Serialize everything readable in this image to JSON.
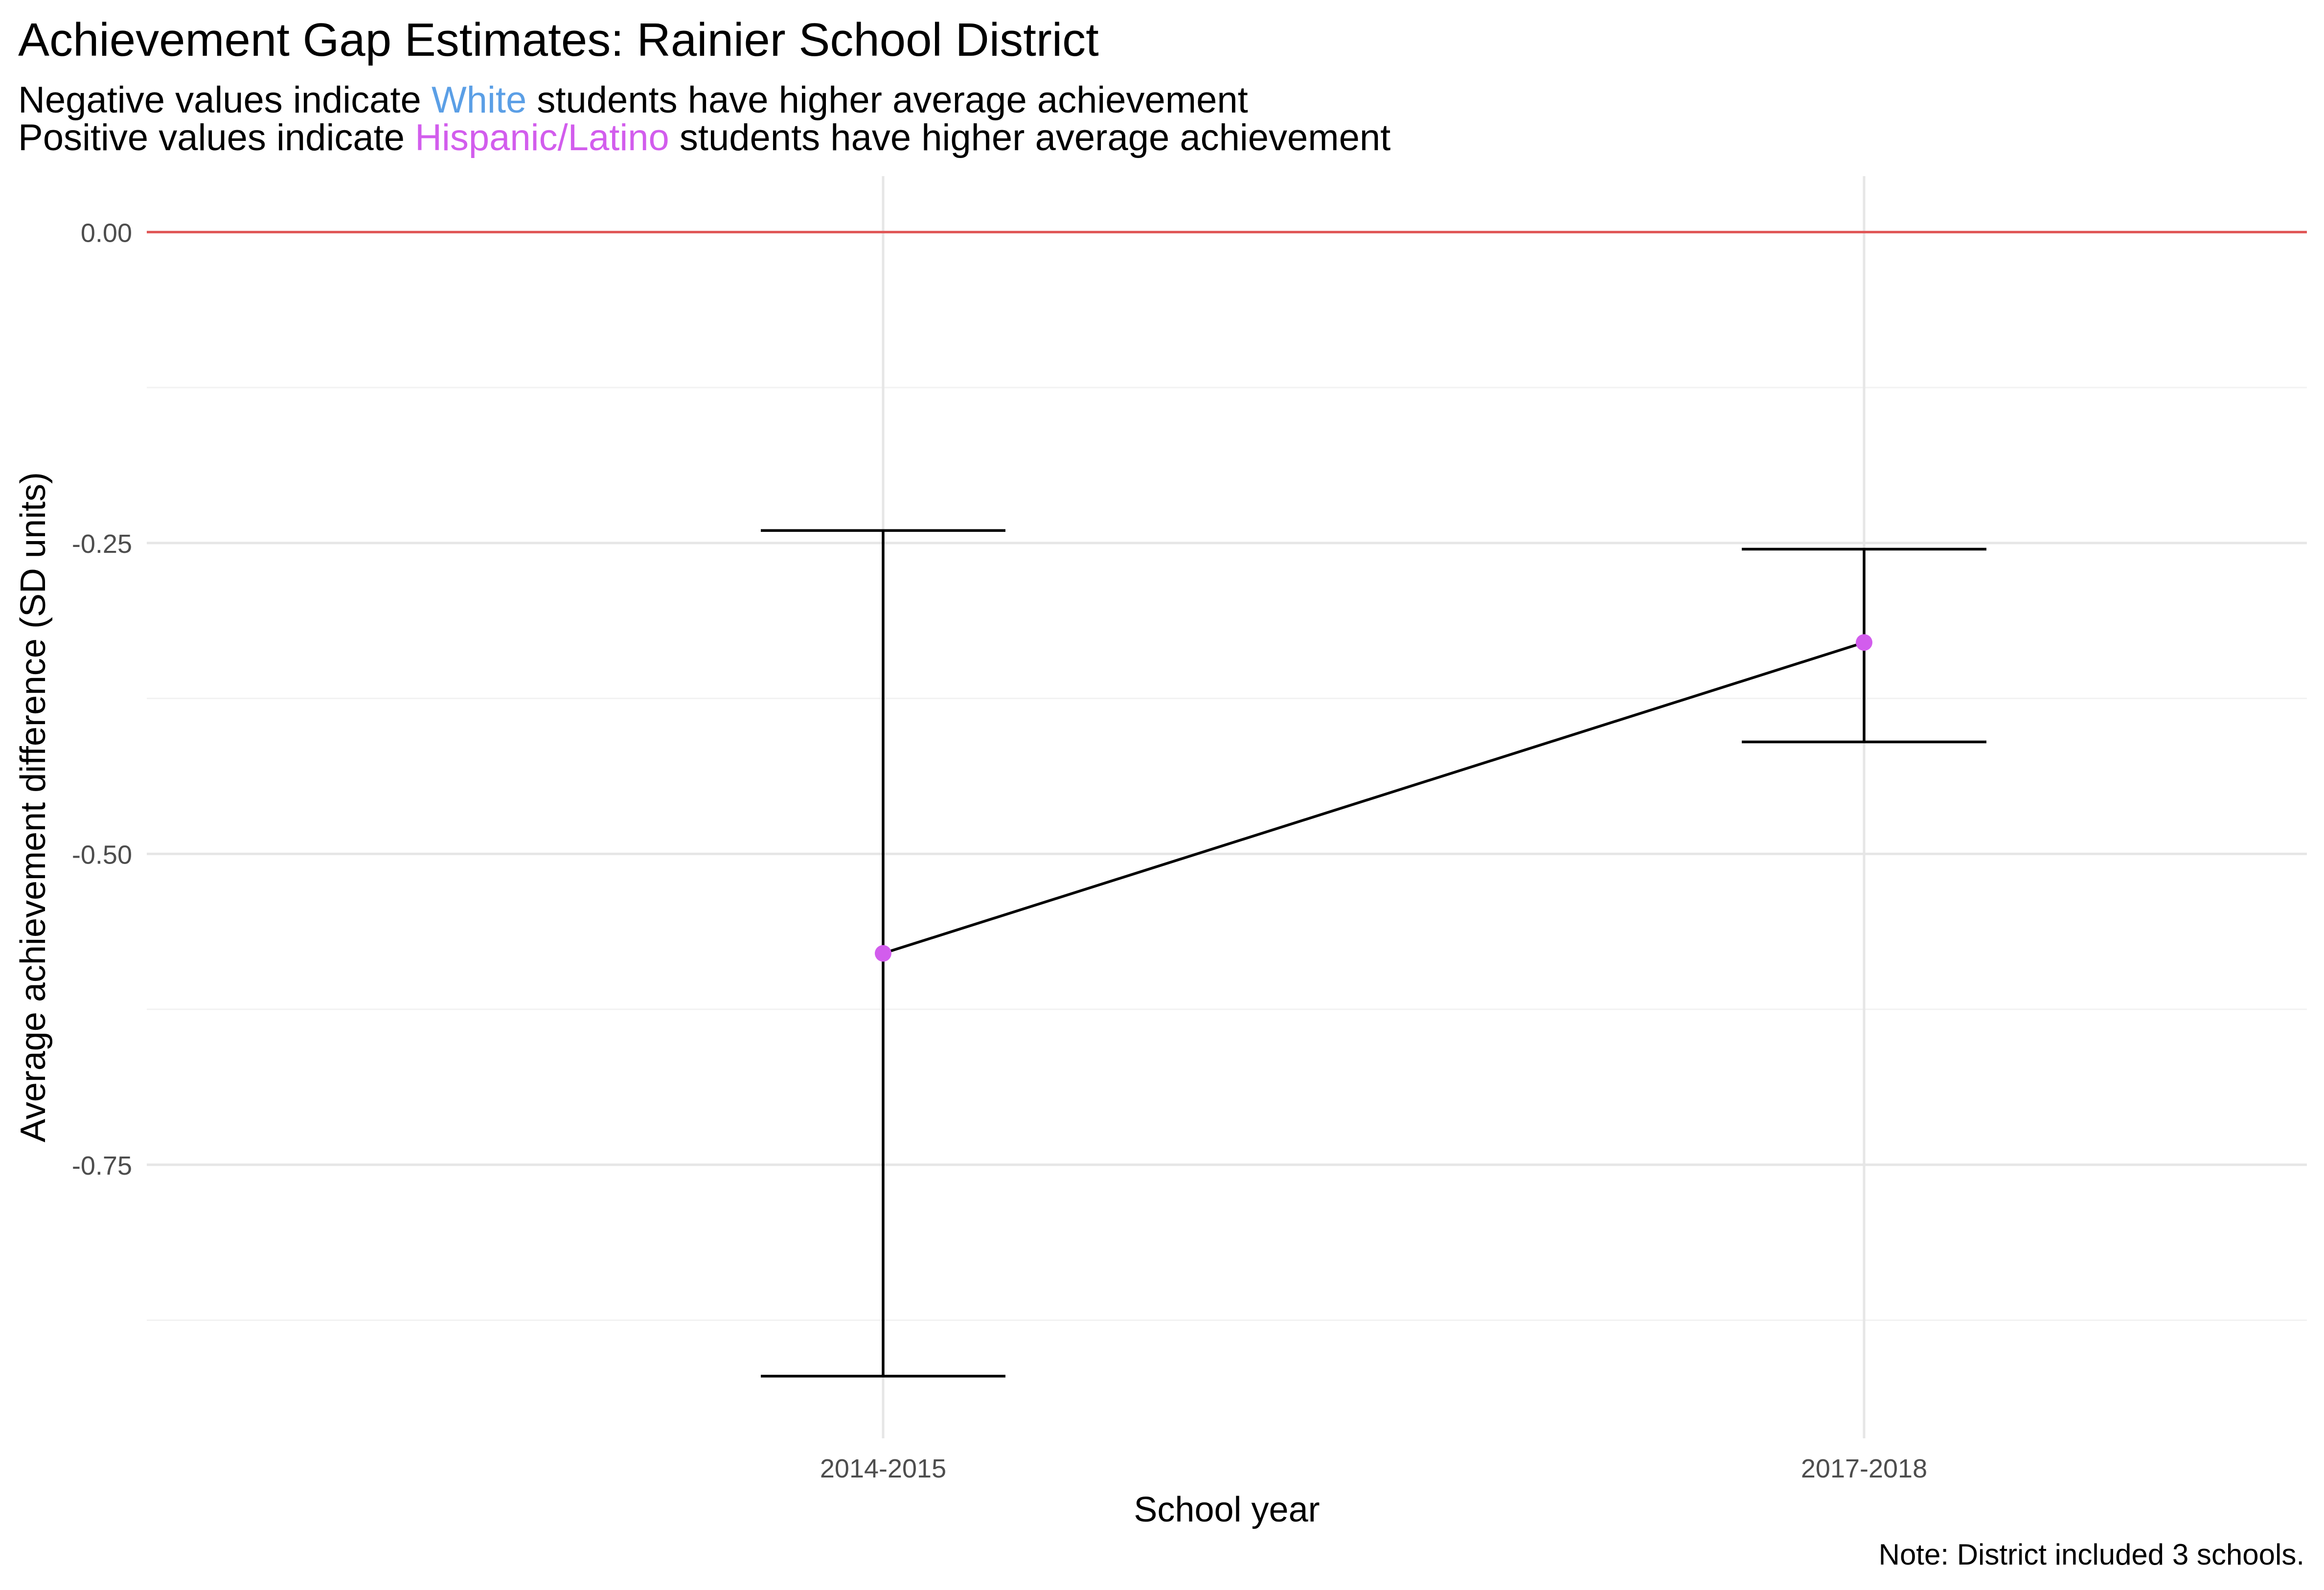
{
  "header": {
    "title": "Achievement Gap Estimates: Rainier School District",
    "subtitle_line1": {
      "before": "Negative values indicate ",
      "highlight": "White",
      "after": " students have higher average achievement"
    },
    "subtitle_line2": {
      "before": "Positive values indicate ",
      "highlight": "Hispanic/Latino",
      "after": " students have higher average achievement"
    }
  },
  "caption": "Note: District included 3 schools.",
  "colors": {
    "white_group": "#5b9fe6",
    "hispanic_group": "#d25ded",
    "reference_line": "#e05555",
    "line": "#000000",
    "grid_major": "#e6e6e6",
    "grid_minor": "#f2f2f2"
  },
  "chart_data": {
    "type": "line",
    "title": "Achievement Gap Estimates: Rainier School District",
    "xlabel": "School year",
    "ylabel": "Average achievement difference (SD units)",
    "categories": [
      "2014-2015",
      "2017-2018"
    ],
    "series": [
      {
        "values": [
          -0.58,
          -0.33
        ],
        "lower": [
          -0.92,
          -0.41
        ],
        "upper": [
          -0.24,
          -0.255
        ]
      }
    ],
    "ylim": [
      -0.97,
      0.045
    ],
    "yticks": [
      0.0,
      -0.25,
      -0.5,
      -0.75
    ],
    "ytick_labels": [
      "0.00",
      "-0.25",
      "-0.50",
      "-0.75"
    ],
    "reference_line": 0.0,
    "grid": true,
    "legend": "none"
  }
}
